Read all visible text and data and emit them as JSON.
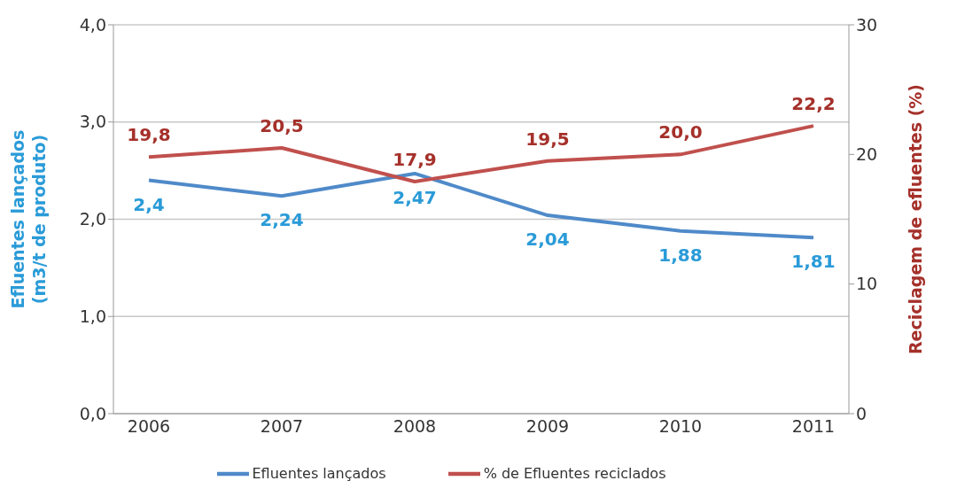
{
  "chart_data": {
    "type": "line",
    "categories": [
      "2006",
      "2007",
      "2008",
      "2009",
      "2010",
      "2011"
    ],
    "ylabel": "Efluentes lançados\n(m3/t de produto)",
    "y2label": "Reciclagem de efluentes (%)",
    "ylim": [
      0,
      4
    ],
    "yticks": [
      {
        "value": 0,
        "label": "0,0"
      },
      {
        "value": 1,
        "label": "1,0"
      },
      {
        "value": 2,
        "label": "2,0"
      },
      {
        "value": 3,
        "label": "3,0"
      },
      {
        "value": 4,
        "label": "4,0"
      }
    ],
    "y2lim": [
      0,
      30
    ],
    "y2ticks": [
      0,
      10,
      20,
      30
    ],
    "series": [
      {
        "name": "Efluentes lançados",
        "color": "#4f8ac9",
        "values": [
          2.4,
          2.24,
          2.47,
          2.04,
          1.88,
          1.81
        ],
        "value_labels": [
          "2,4",
          "2,24",
          "2,47",
          "2,04",
          "1,88",
          "1,81"
        ]
      },
      {
        "name": "% de Efluentes reciclados",
        "color": "#c0504d",
        "axis": "y2",
        "values": [
          19.8,
          20.5,
          17.9,
          19.5,
          20.0,
          22.2
        ],
        "value_labels": [
          "19,8",
          "20,5",
          "17,9",
          "19,5",
          "20,0",
          "22,2"
        ]
      }
    ],
    "grid": "y",
    "legend": "bottom",
    "marker": "none",
    "line_style": "solid"
  }
}
